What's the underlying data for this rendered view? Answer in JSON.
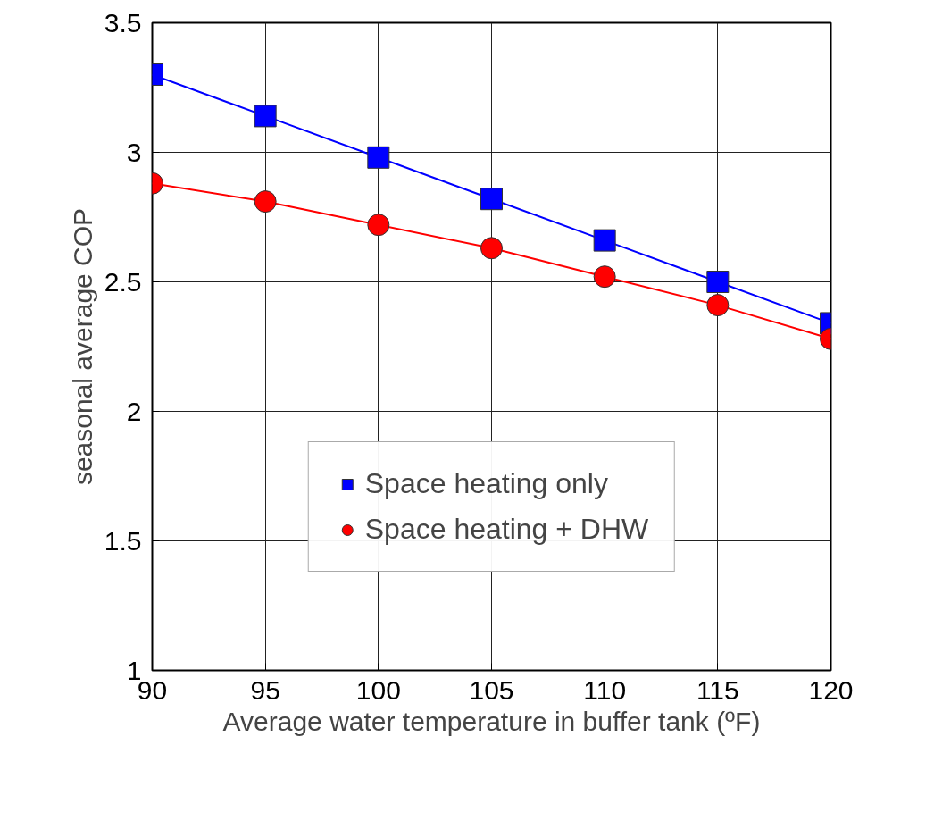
{
  "chart_data": {
    "type": "line",
    "xlabel": "Average water temperature in buffer tank (ºF)",
    "ylabel": "seasonal average COP",
    "x": [
      90,
      95,
      100,
      105,
      110,
      115,
      120
    ],
    "series": [
      {
        "name": "Space heating only",
        "color": "#0000ff",
        "marker": "square",
        "values": [
          3.3,
          3.14,
          2.98,
          2.82,
          2.66,
          2.5,
          2.34
        ]
      },
      {
        "name": "Space heating + DHW",
        "color": "#ff0000",
        "marker": "circle",
        "values": [
          2.88,
          2.81,
          2.72,
          2.63,
          2.52,
          2.41,
          2.28
        ]
      }
    ],
    "xlim": [
      90,
      120
    ],
    "xticks": [
      90,
      95,
      100,
      105,
      110,
      115,
      120
    ],
    "ylim": [
      1,
      3.5
    ],
    "yticks": [
      1,
      {
        "value": 1.5,
        "label": "1.5"
      },
      2,
      {
        "value": 2.5,
        "label": "2.5"
      },
      3,
      {
        "value": 3.5,
        "label": "3.5"
      }
    ],
    "grid": true,
    "legend": "bottom",
    "line_style": "solid"
  }
}
